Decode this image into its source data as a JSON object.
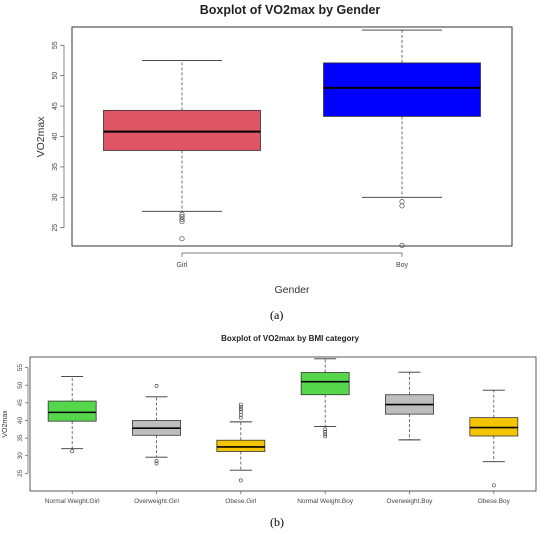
{
  "figure": {
    "panel_a_label": "(a)",
    "panel_b_label": "(b)"
  },
  "chart_data": [
    {
      "type": "boxplot",
      "title": "Boxplot of VO2max by Gender",
      "xlabel": "Gender",
      "ylabel": "VO2max",
      "ylim": [
        22,
        58
      ],
      "yticks": [
        25,
        30,
        35,
        40,
        45,
        50,
        55
      ],
      "grid": false,
      "categories": [
        "Girl",
        "Boy"
      ],
      "boxes": [
        {
          "category": "Girl",
          "color": "#e05566",
          "whisker_low": 27.7,
          "q1": 37.7,
          "median": 40.8,
          "q3": 44.3,
          "whisker_high": 52.5,
          "outliers": [
            27.2,
            26.8,
            26.4,
            26.0,
            23.2
          ]
        },
        {
          "category": "Boy",
          "color": "#0000ff",
          "whisker_low": 30.0,
          "q1": 43.3,
          "median": 48.0,
          "q3": 52.1,
          "whisker_high": 57.5,
          "outliers": [
            29.3,
            28.6,
            22.1
          ]
        }
      ]
    },
    {
      "type": "boxplot",
      "title": "Boxplot of VO2max by BMI category",
      "xlabel": "",
      "ylabel": "VO2max",
      "ylim": [
        20,
        58
      ],
      "yticks": [
        25,
        30,
        35,
        40,
        45,
        50,
        55
      ],
      "grid": false,
      "categories": [
        "Normal Weight.Girl",
        "Overweight.Girl",
        "Obese.Girl",
        "Normal Weight.Boy",
        "Overweight.Boy",
        "Obese.Boy"
      ],
      "boxes": [
        {
          "category": "Normal Weight.Girl",
          "color": "#55d64b",
          "whisker_low": 32.0,
          "q1": 39.8,
          "median": 42.3,
          "q3": 45.5,
          "whisker_high": 52.5,
          "outliers": [
            31.3
          ]
        },
        {
          "category": "Overweight.Girl",
          "color": "#bebebe",
          "whisker_low": 29.6,
          "q1": 35.8,
          "median": 37.8,
          "q3": 40.0,
          "whisker_high": 46.7,
          "outliers": [
            49.8,
            28.5,
            27.8
          ]
        },
        {
          "category": "Obese.Girl",
          "color": "#f5c400",
          "whisker_low": 25.9,
          "q1": 31.2,
          "median": 32.5,
          "q3": 34.4,
          "whisker_high": 39.6,
          "outliers": [
            44.5,
            43.8,
            43.2,
            42.5,
            41.6,
            40.8,
            23.0
          ]
        },
        {
          "category": "Normal Weight.Boy",
          "color": "#55d64b",
          "whisker_low": 38.3,
          "q1": 47.3,
          "median": 51.0,
          "q3": 53.6,
          "whisker_high": 57.5,
          "outliers": [
            37.5,
            36.8,
            36.1,
            35.5
          ]
        },
        {
          "category": "Overweight.Boy",
          "color": "#bebebe",
          "whisker_low": 34.5,
          "q1": 41.8,
          "median": 44.5,
          "q3": 47.3,
          "whisker_high": 53.7,
          "outliers": []
        },
        {
          "category": "Obese.Boy",
          "color": "#f5c400",
          "whisker_low": 28.3,
          "q1": 35.6,
          "median": 38.0,
          "q3": 40.8,
          "whisker_high": 48.6,
          "outliers": [
            21.6
          ]
        }
      ]
    }
  ]
}
